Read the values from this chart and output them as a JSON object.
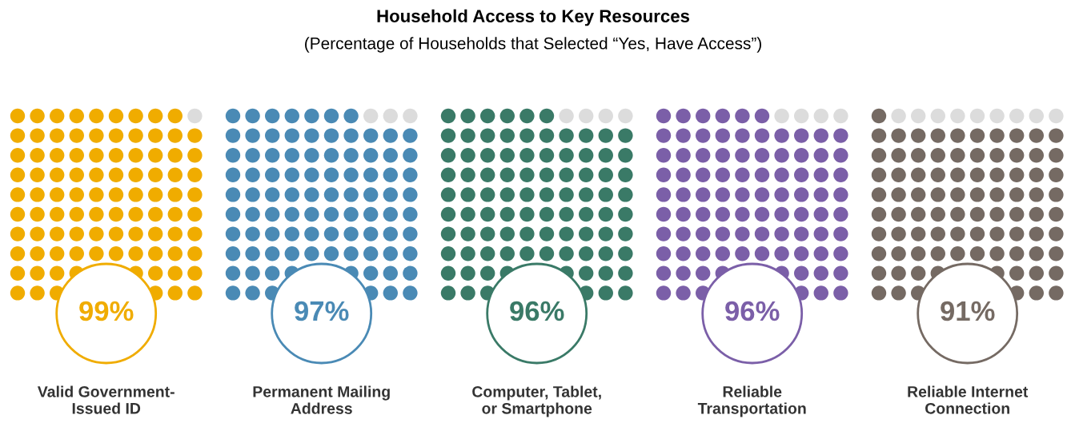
{
  "chart_data": {
    "type": "other",
    "title": "Household Access to Key Resources",
    "subtitle": "(Percentage of Households that Selected “Yes, Have Access”)",
    "categories": [
      "Valid Government-\nIssued ID",
      "Permanent Mailing\nAddress",
      "Computer, Tablet,\nor Smartphone",
      "Reliable\nTransportation",
      "Reliable Internet\nConnection"
    ],
    "values": [
      99,
      97,
      96,
      96,
      91
    ],
    "value_labels": [
      "99%",
      "97%",
      "96%",
      "96%",
      "91%"
    ],
    "colors": [
      "#f0ac00",
      "#4a8ab5",
      "#3a7a67",
      "#7b5fa8",
      "#756a63"
    ]
  }
}
